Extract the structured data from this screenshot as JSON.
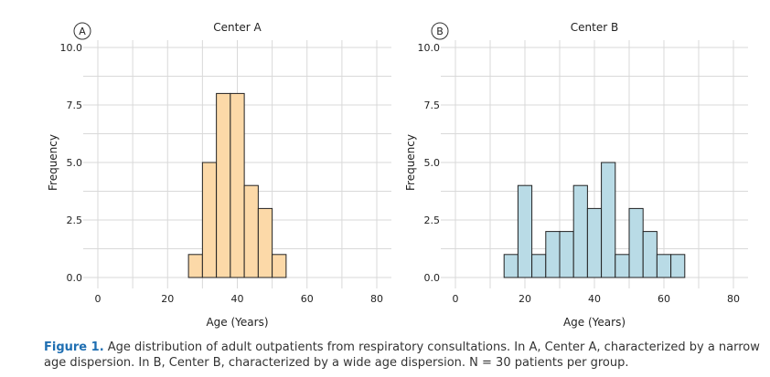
{
  "chart_data": [
    {
      "type": "bar",
      "panel_label": "A",
      "title": "Center A",
      "xlabel": "Age (Years)",
      "ylabel": "Frequency",
      "xlim": [
        0,
        80
      ],
      "ylim": [
        0,
        10
      ],
      "xticks": [
        "0",
        "20",
        "40",
        "60",
        "80"
      ],
      "yticks": [
        "0.0",
        "2.5",
        "5.0",
        "7.5",
        "10.0"
      ],
      "bin_width": 4,
      "bins": [
        {
          "start": 26,
          "end": 30,
          "count": 1
        },
        {
          "start": 30,
          "end": 34,
          "count": 5
        },
        {
          "start": 34,
          "end": 38,
          "count": 8
        },
        {
          "start": 38,
          "end": 42,
          "count": 8
        },
        {
          "start": 42,
          "end": 46,
          "count": 4
        },
        {
          "start": 46,
          "end": 50,
          "count": 3
        },
        {
          "start": 50,
          "end": 54,
          "count": 1
        }
      ],
      "fill": "#fcd9a8",
      "grid": true
    },
    {
      "type": "bar",
      "panel_label": "B",
      "title": "Center B",
      "xlabel": "Age (Years)",
      "ylabel": "Frequency",
      "xlim": [
        0,
        80
      ],
      "ylim": [
        0,
        10
      ],
      "xticks": [
        "0",
        "20",
        "40",
        "60",
        "80"
      ],
      "yticks": [
        "0.0",
        "2.5",
        "5.0",
        "7.5",
        "10.0"
      ],
      "bin_width": 4,
      "bins": [
        {
          "start": 14,
          "end": 18,
          "count": 1
        },
        {
          "start": 18,
          "end": 22,
          "count": 4
        },
        {
          "start": 22,
          "end": 26,
          "count": 1
        },
        {
          "start": 26,
          "end": 30,
          "count": 2
        },
        {
          "start": 30,
          "end": 34,
          "count": 2
        },
        {
          "start": 34,
          "end": 38,
          "count": 4
        },
        {
          "start": 38,
          "end": 42,
          "count": 3
        },
        {
          "start": 42,
          "end": 46,
          "count": 5
        },
        {
          "start": 46,
          "end": 50,
          "count": 1
        },
        {
          "start": 50,
          "end": 54,
          "count": 3
        },
        {
          "start": 54,
          "end": 58,
          "count": 2
        },
        {
          "start": 58,
          "end": 62,
          "count": 1
        },
        {
          "start": 62,
          "end": 66,
          "count": 1
        }
      ],
      "fill": "#b9dbe6",
      "grid": true
    }
  ],
  "caption": {
    "label": "Figure 1.",
    "text": "Age distribution of adult outpatients from respiratory consultations. In A, Center A, characterized by a narrow age dispersion. In B, Center B, characterized by a wide age dispersion. N = 30 patients per group."
  },
  "colors": {
    "grid": "#d9d9d9",
    "bar_stroke": "#222222",
    "caption_label": "#1f6fb2"
  }
}
